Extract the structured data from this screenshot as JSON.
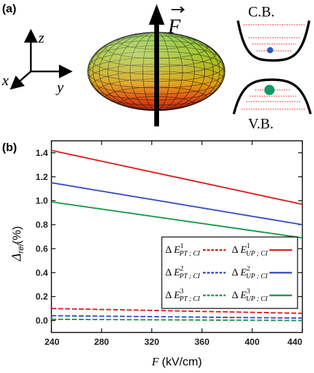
{
  "panel_a": {
    "label": "(a)",
    "axes": {
      "z": "z",
      "x": "x",
      "y": "y"
    },
    "field_label": "F",
    "cb_label": "C.B.",
    "vb_label": "V.B.",
    "colors": {
      "electron": "#2e57c9",
      "hole": "#0f9a63",
      "level_lines": "#e03030"
    }
  },
  "panel_b": {
    "label": "(b)"
  },
  "chart_data": {
    "type": "line",
    "xlabel": "F (kV/cm)",
    "ylabel": "Δrel(%)",
    "xlim": [
      240,
      440
    ],
    "ylim": [
      -0.1,
      1.5
    ],
    "xticks": [
      240,
      280,
      320,
      360,
      400,
      440
    ],
    "yticks": [
      0.0,
      0.2,
      0.4,
      0.6,
      0.8,
      1.0,
      1.2,
      1.4
    ],
    "xtick_labels": [
      "240",
      "280",
      "320",
      "360",
      "400",
      "440"
    ],
    "ytick_labels": [
      "0.0",
      "0.2",
      "0.4",
      "0.6",
      "0.8",
      "1.0",
      "1.2",
      "1.4"
    ],
    "legend_position": "right-center",
    "series": [
      {
        "name": "ΔE¹_UP;CI",
        "style": "solid",
        "color": "#e02020",
        "x": [
          240,
          440
        ],
        "y": [
          1.42,
          0.97
        ]
      },
      {
        "name": "ΔE²_UP;CI",
        "style": "solid",
        "color": "#3a4fc0",
        "x": [
          240,
          440
        ],
        "y": [
          1.15,
          0.8
        ]
      },
      {
        "name": "ΔE³_UP;CI",
        "style": "solid",
        "color": "#1a9a4a",
        "x": [
          240,
          440
        ],
        "y": [
          0.99,
          0.69
        ]
      },
      {
        "name": "ΔE¹_PT;CI",
        "style": "dashed",
        "color": "#e02020",
        "x": [
          240,
          440
        ],
        "y": [
          0.1,
          0.06
        ]
      },
      {
        "name": "ΔE²_PT;CI",
        "style": "dashed",
        "color": "#3a4fc0",
        "x": [
          240,
          440
        ],
        "y": [
          0.04,
          0.02
        ]
      },
      {
        "name": "ΔE³_PT;CI",
        "style": "dashed",
        "color": "#1a9a4a",
        "x": [
          240,
          440
        ],
        "y": [
          0.01,
          0.0
        ]
      }
    ],
    "legend": [
      {
        "main": "Δ E",
        "sup": "1",
        "sub": "PT ; CI",
        "style": "dashed",
        "color": "#e02020"
      },
      {
        "main": "Δ E",
        "sup": "1",
        "sub": "UP ; CI",
        "style": "solid",
        "color": "#e02020"
      },
      {
        "main": "Δ E",
        "sup": "2",
        "sub": "PT ; CI",
        "style": "dashed",
        "color": "#3a4fc0"
      },
      {
        "main": "Δ E",
        "sup": "2",
        "sub": "UP ; CI",
        "style": "solid",
        "color": "#3a4fc0"
      },
      {
        "main": "Δ E",
        "sup": "3",
        "sub": "PT ; CI",
        "style": "dashed",
        "color": "#1a9a4a"
      },
      {
        "main": "Δ E",
        "sup": "3",
        "sub": "UP ; CI",
        "style": "solid",
        "color": "#1a9a4a"
      }
    ]
  }
}
